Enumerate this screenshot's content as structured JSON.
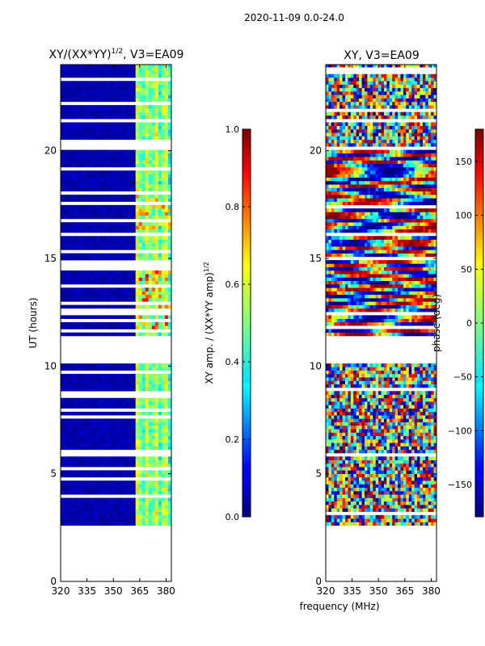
{
  "figure": {
    "suptitle": "2020-11-09 0.0-24.0",
    "xlabel_shared": "frequency (MHz)"
  },
  "chart_data": [
    {
      "type": "heatmap",
      "title_main": "XY/(XX*YY)",
      "title_exp": "1/2",
      "title_suffix": ", V3=EA09",
      "ylabel": "UT (hours)",
      "xlim": [
        320,
        383
      ],
      "ylim": [
        0,
        24
      ],
      "xticks": [
        "320",
        "335",
        "350",
        "365",
        "380"
      ],
      "xtick_values": [
        320,
        335,
        350,
        365,
        380
      ],
      "yticks": [
        "0",
        "5",
        "10",
        "15",
        "20"
      ],
      "ytick_values": [
        0,
        5,
        10,
        15,
        20
      ],
      "colormap": "jet",
      "colorbar": {
        "label_main": "XY amp. / (XX*YY amp)",
        "label_exp": "1/2",
        "range": [
          0.0,
          1.0
        ],
        "ticks": [
          "0.0",
          "0.2",
          "0.4",
          "0.6",
          "0.8",
          "1.0"
        ],
        "tick_values": [
          0.0,
          0.2,
          0.4,
          0.6,
          0.8,
          1.0
        ]
      },
      "data_rows_hours": [
        2.6,
        24.0
      ],
      "gap_hours": [
        [
          10.0,
          11.4
        ],
        [
          14.3,
          14.8
        ],
        [
          20.0,
          20.5
        ]
      ],
      "bright_band_mhz": [
        361,
        383
      ]
    },
    {
      "type": "heatmap",
      "title": "XY, V3=EA09",
      "ylabel": "phase (deg)",
      "xlim": [
        320,
        383
      ],
      "ylim": [
        0,
        24
      ],
      "xticks": [
        "320",
        "335",
        "350",
        "365",
        "380"
      ],
      "xtick_values": [
        320,
        335,
        350,
        365,
        380
      ],
      "yticks": [
        "0",
        "5",
        "10",
        "15",
        "20"
      ],
      "ytick_values": [
        0,
        5,
        10,
        15,
        20
      ],
      "colormap": "jet",
      "colorbar": {
        "range": [
          -180,
          180
        ],
        "ticks": [
          "−150",
          "−100",
          "−50",
          "0",
          "50",
          "100",
          "150"
        ],
        "tick_values": [
          -150,
          -100,
          -50,
          0,
          50,
          100,
          150
        ]
      },
      "data_rows_hours": [
        2.6,
        24.0
      ],
      "gap_hours": [
        [
          10.0,
          11.4
        ],
        [
          20.0,
          20.2
        ]
      ]
    }
  ]
}
